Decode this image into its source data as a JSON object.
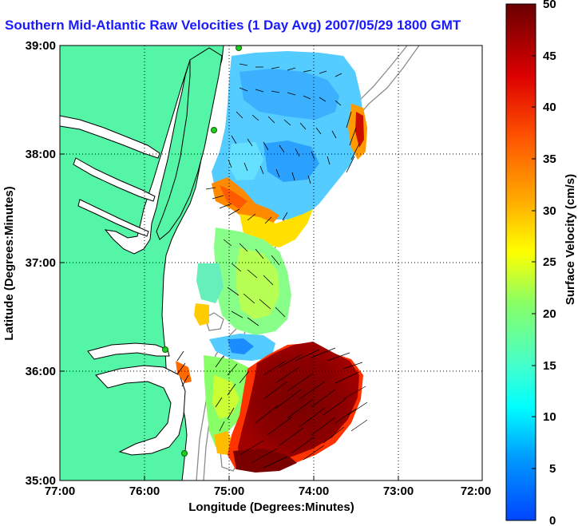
{
  "title": "Southern Mid-Atlantic Raw Velocities (1 Day Avg) 2007/05/29 1800 GMT",
  "map": {
    "xlabel": "Longitude (Degrees:Minutes)",
    "ylabel": "Latitude (Degrees:Minutes)",
    "x_ticks": [
      "77:00",
      "76:00",
      "75:00",
      "74:00",
      "73:00",
      "72:00"
    ],
    "y_ticks": [
      "39:00",
      "38:00",
      "37:00",
      "36:00",
      "35:00"
    ],
    "colors": {
      "land": "#55f5a8",
      "water": "#ffffff",
      "coast": "#000000",
      "bathymetry": "#8c8c8c",
      "station": "#22cc22"
    }
  },
  "colorbar": {
    "label": "Surface Velocity (cm/s)",
    "ticks": [
      "50",
      "45",
      "40",
      "35",
      "30",
      "25",
      "20",
      "15",
      "10",
      "5",
      "0"
    ],
    "min": 0,
    "max": 50,
    "units": "cm/s"
  }
}
